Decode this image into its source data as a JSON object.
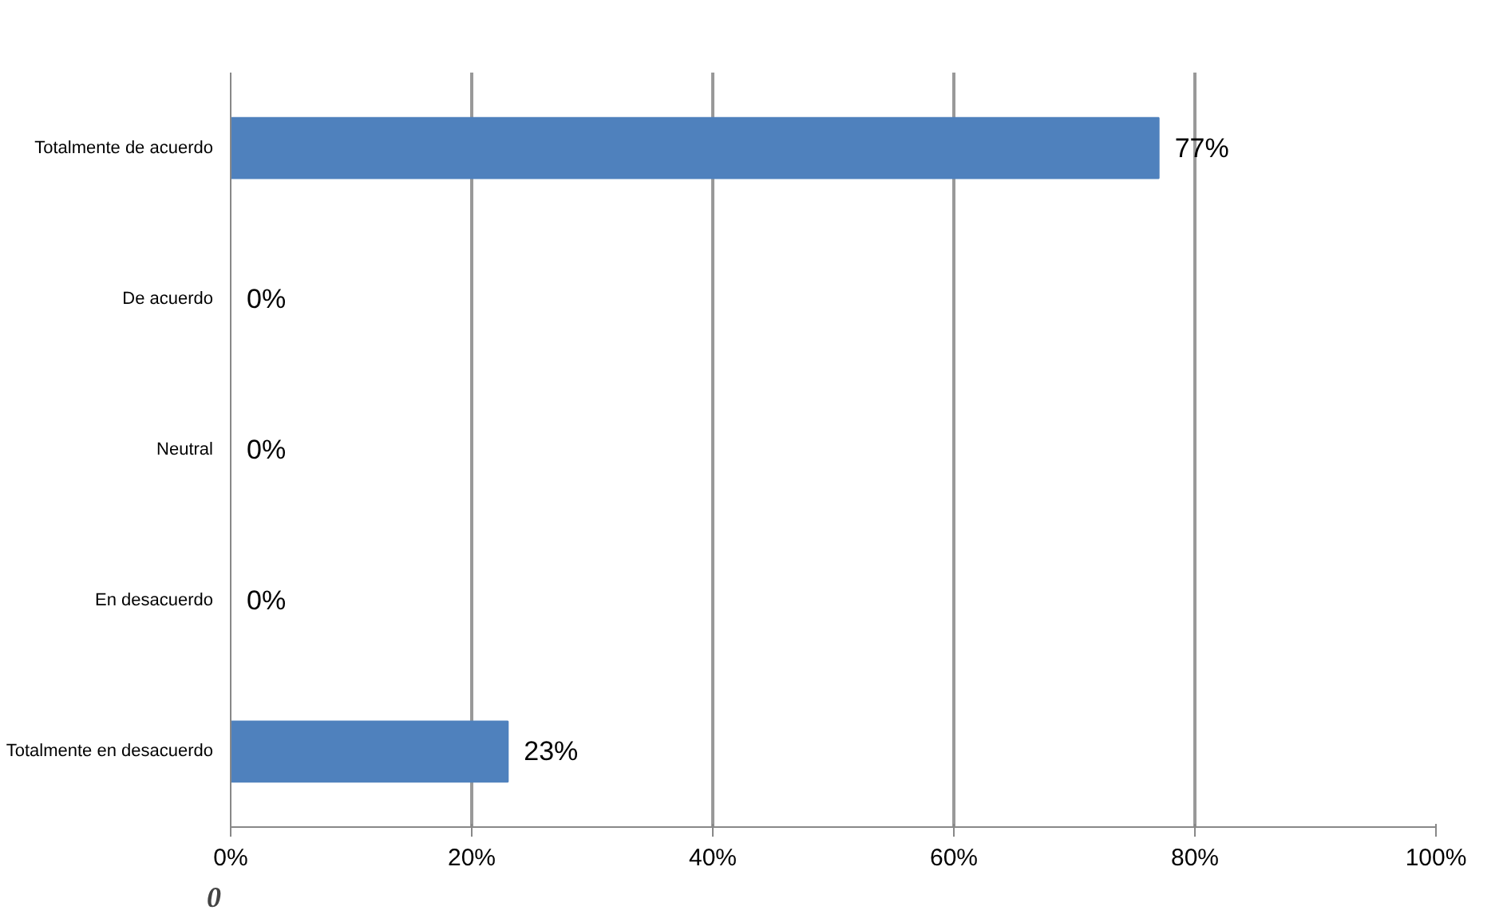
{
  "chart_data": {
    "type": "bar",
    "orientation": "horizontal",
    "categories": [
      "Totalmente de acuerdo",
      "De acuerdo",
      "Neutral",
      "En desacuerdo",
      "Totalmente en desacuerdo"
    ],
    "values": [
      77,
      0,
      0,
      0,
      23
    ],
    "value_labels": [
      "77%",
      "0%",
      "0%",
      "0%",
      "23%"
    ],
    "color": "#4f81bd",
    "xlim": [
      0,
      100
    ],
    "xticks": [
      {
        "value": 0,
        "label": "0%"
      },
      {
        "value": 20,
        "label": "20%"
      },
      {
        "value": 40,
        "label": "40%"
      },
      {
        "value": 60,
        "label": "60%"
      },
      {
        "value": 80,
        "label": "80%"
      },
      {
        "value": 100,
        "label": "100%"
      }
    ],
    "grid": "x",
    "annotations": [
      "0"
    ]
  }
}
